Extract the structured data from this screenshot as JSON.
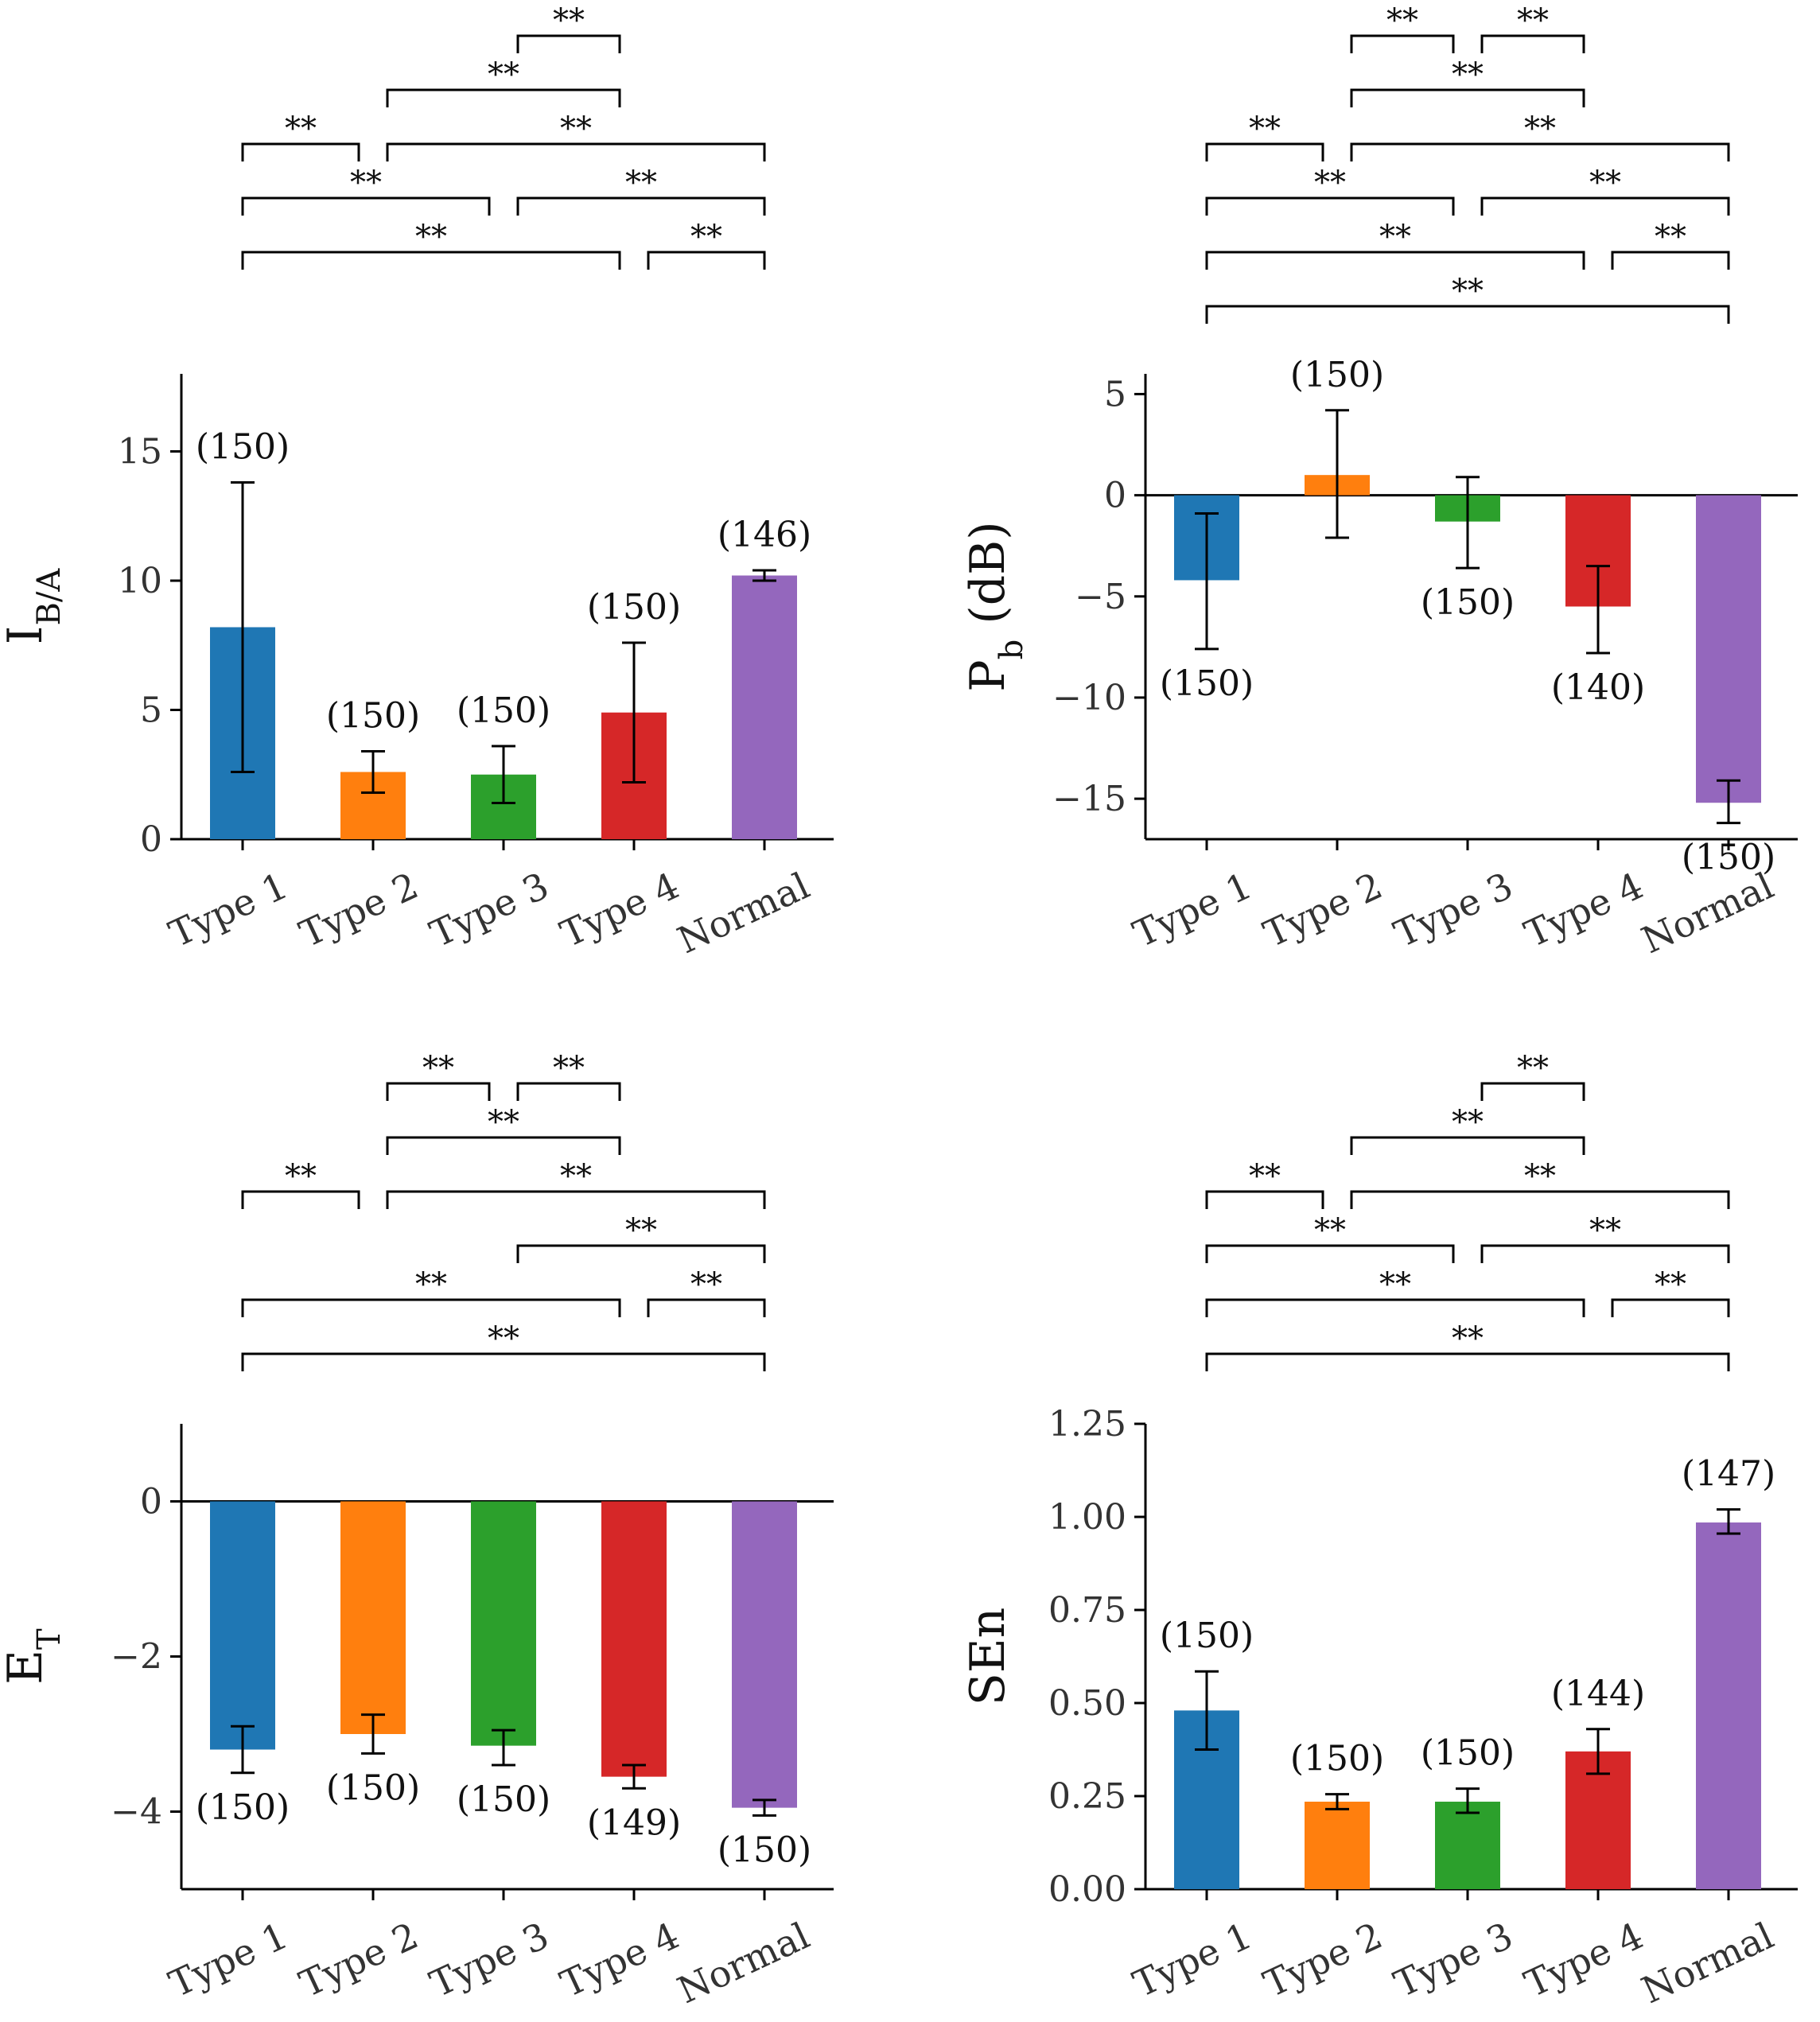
{
  "chart_data": [
    {
      "id": "ib_a",
      "type": "bar",
      "ylabel_main": "I",
      "ylabel_sub": "B/A",
      "categories": [
        "Type 1",
        "Type 2",
        "Type 3",
        "Type 4",
        "Normal"
      ],
      "values": [
        8.2,
        2.6,
        2.5,
        4.9,
        10.2
      ],
      "err_low": [
        2.6,
        1.8,
        1.4,
        2.2,
        10.0
      ],
      "err_high": [
        13.8,
        3.4,
        3.6,
        7.6,
        10.4
      ],
      "n_labels": [
        "(150)",
        "(150)",
        "(150)",
        "(150)",
        "(146)"
      ],
      "ylim": [
        0,
        18
      ],
      "yticks": [
        0,
        5,
        10,
        15
      ],
      "ytick_labels": [
        "0",
        "5",
        "10",
        "15"
      ],
      "colors": [
        "#1f77b4",
        "#ff7f0e",
        "#2ca02c",
        "#d62728",
        "#9467bd"
      ],
      "significance": [
        {
          "a": 2,
          "b": 3,
          "label": "**"
        },
        {
          "a": 1,
          "b": 3,
          "label": "**"
        },
        {
          "a": 0,
          "b": 1,
          "label": "**"
        },
        {
          "a": 1,
          "b": 4,
          "label": "**"
        },
        {
          "a": 0,
          "b": 2,
          "label": "**"
        },
        {
          "a": 2,
          "b": 4,
          "label": "**"
        },
        {
          "a": 0,
          "b": 3,
          "label": "**"
        },
        {
          "a": 3,
          "b": 4,
          "label": "**"
        }
      ]
    },
    {
      "id": "pb",
      "type": "bar",
      "ylabel_main": "P",
      "ylabel_sub": "b",
      "ylabel_tail": " (dB)",
      "categories": [
        "Type 1",
        "Type 2",
        "Type 3",
        "Type 4",
        "Normal"
      ],
      "values": [
        -4.2,
        1.0,
        -1.3,
        -5.5,
        -15.2
      ],
      "err_low": [
        -7.6,
        -2.1,
        -3.6,
        -7.8,
        -16.2
      ],
      "err_high": [
        -0.9,
        4.2,
        0.9,
        -3.5,
        -14.1
      ],
      "n_labels": [
        "(150)",
        "(150)",
        "(150)",
        "(140)",
        "(150)"
      ],
      "ylim": [
        -17,
        6
      ],
      "yticks": [
        -15,
        -10,
        -5,
        0,
        5
      ],
      "ytick_labels": [
        "−15",
        "−10",
        "−5",
        "0",
        "5"
      ],
      "colors": [
        "#1f77b4",
        "#ff7f0e",
        "#2ca02c",
        "#d62728",
        "#9467bd"
      ],
      "significance": [
        {
          "a": 1,
          "b": 2,
          "label": "**"
        },
        {
          "a": 2,
          "b": 3,
          "label": "**"
        },
        {
          "a": 1,
          "b": 3,
          "label": "**"
        },
        {
          "a": 0,
          "b": 1,
          "label": "**"
        },
        {
          "a": 1,
          "b": 4,
          "label": "**"
        },
        {
          "a": 0,
          "b": 2,
          "label": "**"
        },
        {
          "a": 2,
          "b": 4,
          "label": "**"
        },
        {
          "a": 0,
          "b": 3,
          "label": "**"
        },
        {
          "a": 3,
          "b": 4,
          "label": "**"
        },
        {
          "a": 0,
          "b": 4,
          "label": "**"
        }
      ]
    },
    {
      "id": "et",
      "type": "bar",
      "ylabel_main": "E",
      "ylabel_sub": "T",
      "categories": [
        "Type 1",
        "Type 2",
        "Type 3",
        "Type 4",
        "Normal"
      ],
      "values": [
        -3.2,
        -3.0,
        -3.15,
        -3.55,
        -3.95
      ],
      "err_low": [
        -3.5,
        -3.25,
        -3.4,
        -3.7,
        -4.05
      ],
      "err_high": [
        -2.9,
        -2.75,
        -2.95,
        -3.4,
        -3.85
      ],
      "n_labels": [
        "(150)",
        "(150)",
        "(150)",
        "(149)",
        "(150)"
      ],
      "ylim": [
        -5,
        1
      ],
      "yticks": [
        -4,
        -2,
        0
      ],
      "ytick_labels": [
        "−4",
        "−2",
        "0"
      ],
      "colors": [
        "#1f77b4",
        "#ff7f0e",
        "#2ca02c",
        "#d62728",
        "#9467bd"
      ],
      "significance": [
        {
          "a": 1,
          "b": 2,
          "label": "**"
        },
        {
          "a": 2,
          "b": 3,
          "label": "**"
        },
        {
          "a": 1,
          "b": 3,
          "label": "**"
        },
        {
          "a": 0,
          "b": 1,
          "label": "**"
        },
        {
          "a": 1,
          "b": 4,
          "label": "**"
        },
        {
          "a": 2,
          "b": 4,
          "label": "**"
        },
        {
          "a": 0,
          "b": 3,
          "label": "**"
        },
        {
          "a": 3,
          "b": 4,
          "label": "**"
        },
        {
          "a": 0,
          "b": 4,
          "label": "**"
        }
      ]
    },
    {
      "id": "sen",
      "type": "bar",
      "ylabel_main": "SEn",
      "ylabel_sub": "",
      "categories": [
        "Type 1",
        "Type 2",
        "Type 3",
        "Type 4",
        "Normal"
      ],
      "values": [
        0.48,
        0.235,
        0.235,
        0.37,
        0.985
      ],
      "err_low": [
        0.375,
        0.215,
        0.205,
        0.31,
        0.955
      ],
      "err_high": [
        0.585,
        0.255,
        0.27,
        0.43,
        1.02
      ],
      "n_labels": [
        "(150)",
        "(150)",
        "(150)",
        "(144)",
        "(147)"
      ],
      "ylim": [
        0,
        1.25
      ],
      "yticks": [
        0,
        0.25,
        0.5,
        0.75,
        1.0,
        1.25
      ],
      "ytick_labels": [
        "0.00",
        "0.25",
        "0.50",
        "0.75",
        "1.00",
        "1.25"
      ],
      "colors": [
        "#1f77b4",
        "#ff7f0e",
        "#2ca02c",
        "#d62728",
        "#9467bd"
      ],
      "significance": [
        {
          "a": 2,
          "b": 3,
          "label": "**"
        },
        {
          "a": 1,
          "b": 3,
          "label": "**"
        },
        {
          "a": 0,
          "b": 1,
          "label": "**"
        },
        {
          "a": 1,
          "b": 4,
          "label": "**"
        },
        {
          "a": 0,
          "b": 2,
          "label": "**"
        },
        {
          "a": 2,
          "b": 4,
          "label": "**"
        },
        {
          "a": 0,
          "b": 3,
          "label": "**"
        },
        {
          "a": 3,
          "b": 4,
          "label": "**"
        },
        {
          "a": 0,
          "b": 4,
          "label": "**"
        }
      ]
    }
  ]
}
